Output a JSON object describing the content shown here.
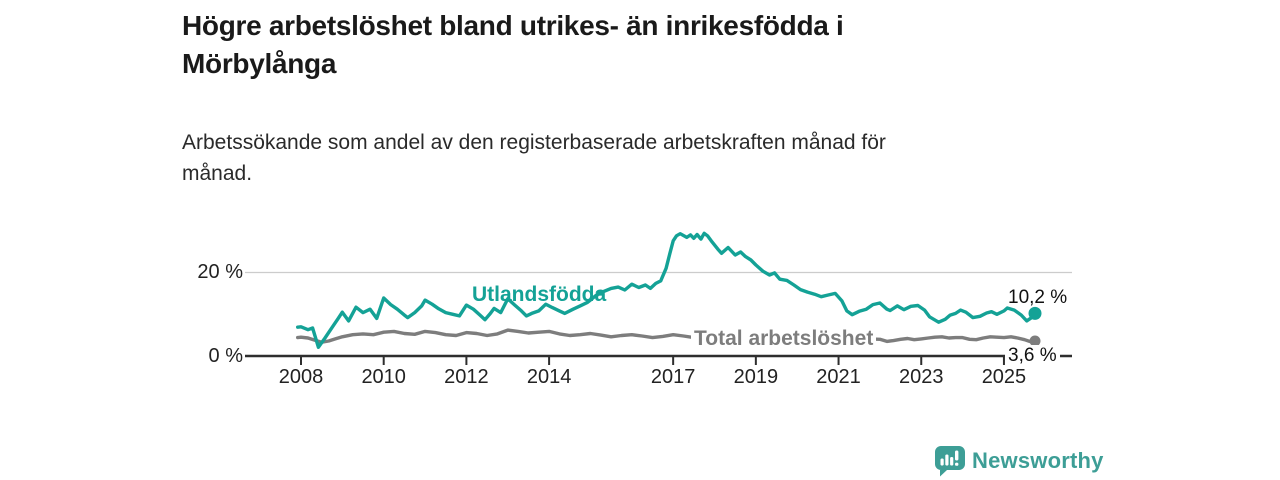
{
  "header": {
    "title_line1": "Högre arbetslöshet bland utrikes- än inrikesfödda i",
    "title_line2": "Mörbylånga",
    "subtitle_line1": "Arbetssökande som andel av den registerbaserade arbetskraften månad för",
    "subtitle_line2": "månad."
  },
  "chart_data": {
    "type": "line",
    "title": "Högre arbetslöshet bland utrikes- än inrikesfödda i Mörbylånga",
    "subtitle": "Arbetssökande som andel av den registerbaserade arbetskraften månad för månad.",
    "unit": "%",
    "grid": "horizontal-at-20-only",
    "legend_position": "inline-labels-on-lines",
    "x_axis": {
      "tick_years": [
        2008,
        2010,
        2012,
        2014,
        2017,
        2019,
        2021,
        2023,
        2025
      ],
      "range": [
        2007.9,
        2026.2
      ]
    },
    "y_axis": {
      "tick_values": [
        0,
        20
      ],
      "tick_labels": [
        "0 %",
        "20 %"
      ],
      "range": [
        0,
        31
      ],
      "gridline_at": 20
    },
    "series": [
      {
        "name": "Utlandsfödda",
        "color": "#14a296",
        "end_value": 10.2,
        "end_label": "10,2 %",
        "points": [
          [
            2007.92,
            6.9
          ],
          [
            2008.0,
            7.0
          ],
          [
            2008.17,
            6.3
          ],
          [
            2008.28,
            6.7
          ],
          [
            2008.42,
            2.1
          ],
          [
            2008.58,
            4.3
          ],
          [
            2008.75,
            6.8
          ],
          [
            2008.9,
            9.0
          ],
          [
            2009.0,
            10.5
          ],
          [
            2009.15,
            8.4
          ],
          [
            2009.33,
            11.7
          ],
          [
            2009.5,
            10.4
          ],
          [
            2009.67,
            11.2
          ],
          [
            2009.83,
            9.0
          ],
          [
            2010.0,
            13.9
          ],
          [
            2010.17,
            12.3
          ],
          [
            2010.33,
            11.2
          ],
          [
            2010.5,
            9.8
          ],
          [
            2010.58,
            9.2
          ],
          [
            2010.75,
            10.4
          ],
          [
            2010.92,
            12.0
          ],
          [
            2011.0,
            13.4
          ],
          [
            2011.17,
            12.4
          ],
          [
            2011.33,
            11.3
          ],
          [
            2011.5,
            10.4
          ],
          [
            2011.67,
            10.0
          ],
          [
            2011.83,
            9.6
          ],
          [
            2012.0,
            12.2
          ],
          [
            2012.17,
            11.2
          ],
          [
            2012.33,
            9.8
          ],
          [
            2012.45,
            8.7
          ],
          [
            2012.58,
            10.2
          ],
          [
            2012.67,
            11.4
          ],
          [
            2012.83,
            10.4
          ],
          [
            2013.0,
            13.7
          ],
          [
            2013.17,
            12.2
          ],
          [
            2013.33,
            10.8
          ],
          [
            2013.45,
            9.6
          ],
          [
            2013.58,
            10.2
          ],
          [
            2013.75,
            10.8
          ],
          [
            2013.92,
            12.4
          ],
          [
            2014.08,
            11.6
          ],
          [
            2014.25,
            10.8
          ],
          [
            2014.38,
            10.2
          ],
          [
            2014.58,
            11.2
          ],
          [
            2014.75,
            12.0
          ],
          [
            2014.92,
            12.8
          ],
          [
            2015.0,
            13.4
          ],
          [
            2015.17,
            14.8
          ],
          [
            2015.33,
            15.5
          ],
          [
            2015.5,
            16.2
          ],
          [
            2015.67,
            16.5
          ],
          [
            2015.83,
            15.8
          ],
          [
            2016.0,
            17.2
          ],
          [
            2016.17,
            16.4
          ],
          [
            2016.33,
            17.0
          ],
          [
            2016.45,
            16.2
          ],
          [
            2016.58,
            17.4
          ],
          [
            2016.7,
            18.0
          ],
          [
            2016.83,
            21.0
          ],
          [
            2016.92,
            24.5
          ],
          [
            2017.0,
            27.6
          ],
          [
            2017.08,
            28.8
          ],
          [
            2017.17,
            29.3
          ],
          [
            2017.33,
            28.4
          ],
          [
            2017.42,
            29.0
          ],
          [
            2017.5,
            28.2
          ],
          [
            2017.58,
            29.1
          ],
          [
            2017.67,
            28.0
          ],
          [
            2017.75,
            29.4
          ],
          [
            2017.83,
            28.8
          ],
          [
            2017.92,
            27.6
          ],
          [
            2018.08,
            25.6
          ],
          [
            2018.17,
            24.6
          ],
          [
            2018.33,
            26.0
          ],
          [
            2018.5,
            24.2
          ],
          [
            2018.63,
            24.9
          ],
          [
            2018.75,
            23.8
          ],
          [
            2018.88,
            23.0
          ],
          [
            2019.0,
            21.8
          ],
          [
            2019.17,
            20.3
          ],
          [
            2019.33,
            19.4
          ],
          [
            2019.45,
            19.9
          ],
          [
            2019.58,
            18.4
          ],
          [
            2019.75,
            18.1
          ],
          [
            2019.92,
            17.0
          ],
          [
            2020.08,
            15.9
          ],
          [
            2020.25,
            15.3
          ],
          [
            2020.42,
            14.8
          ],
          [
            2020.58,
            14.2
          ],
          [
            2020.75,
            14.6
          ],
          [
            2020.92,
            15.0
          ],
          [
            2021.08,
            13.2
          ],
          [
            2021.2,
            10.8
          ],
          [
            2021.33,
            9.9
          ],
          [
            2021.5,
            10.7
          ],
          [
            2021.67,
            11.2
          ],
          [
            2021.83,
            12.3
          ],
          [
            2022.0,
            12.7
          ],
          [
            2022.17,
            11.2
          ],
          [
            2022.25,
            10.9
          ],
          [
            2022.42,
            12.0
          ],
          [
            2022.58,
            11.1
          ],
          [
            2022.75,
            11.9
          ],
          [
            2022.92,
            12.1
          ],
          [
            2023.08,
            11.0
          ],
          [
            2023.2,
            9.4
          ],
          [
            2023.42,
            8.1
          ],
          [
            2023.58,
            8.8
          ],
          [
            2023.7,
            9.8
          ],
          [
            2023.83,
            10.2
          ],
          [
            2023.95,
            11.0
          ],
          [
            2024.08,
            10.5
          ],
          [
            2024.25,
            9.2
          ],
          [
            2024.42,
            9.5
          ],
          [
            2024.58,
            10.3
          ],
          [
            2024.7,
            10.6
          ],
          [
            2024.83,
            10.0
          ],
          [
            2025.0,
            10.8
          ],
          [
            2025.08,
            11.5
          ],
          [
            2025.25,
            11.0
          ],
          [
            2025.42,
            9.8
          ],
          [
            2025.55,
            8.4
          ],
          [
            2025.67,
            9.2
          ],
          [
            2025.75,
            10.2
          ]
        ]
      },
      {
        "name": "Total arbetslöshet",
        "color": "#7d7d7d",
        "end_value": 3.6,
        "end_label": "3,6 %",
        "points": [
          [
            2007.92,
            4.4
          ],
          [
            2008.0,
            4.5
          ],
          [
            2008.17,
            4.3
          ],
          [
            2008.33,
            3.8
          ],
          [
            2008.5,
            3.3
          ],
          [
            2008.67,
            3.6
          ],
          [
            2008.83,
            4.1
          ],
          [
            2009.0,
            4.6
          ],
          [
            2009.25,
            5.1
          ],
          [
            2009.5,
            5.3
          ],
          [
            2009.75,
            5.1
          ],
          [
            2010.0,
            5.7
          ],
          [
            2010.25,
            5.9
          ],
          [
            2010.5,
            5.4
          ],
          [
            2010.75,
            5.2
          ],
          [
            2011.0,
            5.9
          ],
          [
            2011.25,
            5.6
          ],
          [
            2011.5,
            5.1
          ],
          [
            2011.75,
            4.9
          ],
          [
            2012.0,
            5.6
          ],
          [
            2012.25,
            5.4
          ],
          [
            2012.5,
            4.9
          ],
          [
            2012.75,
            5.3
          ],
          [
            2013.0,
            6.2
          ],
          [
            2013.25,
            5.9
          ],
          [
            2013.5,
            5.5
          ],
          [
            2013.75,
            5.7
          ],
          [
            2014.0,
            5.9
          ],
          [
            2014.25,
            5.3
          ],
          [
            2014.5,
            4.9
          ],
          [
            2014.75,
            5.1
          ],
          [
            2015.0,
            5.4
          ],
          [
            2015.25,
            5.0
          ],
          [
            2015.5,
            4.6
          ],
          [
            2015.75,
            4.9
          ],
          [
            2016.0,
            5.1
          ],
          [
            2016.25,
            4.8
          ],
          [
            2016.5,
            4.4
          ],
          [
            2016.75,
            4.7
          ],
          [
            2017.0,
            5.1
          ],
          [
            2017.25,
            4.8
          ],
          [
            2017.5,
            4.4
          ],
          [
            2017.75,
            4.6
          ],
          [
            2018.0,
            4.7
          ],
          [
            2018.25,
            4.4
          ],
          [
            2018.5,
            4.1
          ],
          [
            2018.75,
            4.3
          ],
          [
            2019.0,
            4.4
          ],
          [
            2019.25,
            4.1
          ],
          [
            2019.5,
            3.8
          ],
          [
            2019.75,
            4.1
          ],
          [
            2020.0,
            4.4
          ],
          [
            2020.25,
            4.8
          ],
          [
            2020.5,
            5.0
          ],
          [
            2020.75,
            4.8
          ],
          [
            2021.0,
            4.6
          ],
          [
            2021.25,
            4.3
          ],
          [
            2021.5,
            4.0
          ],
          [
            2021.75,
            4.1
          ],
          [
            2022.0,
            4.0
          ],
          [
            2022.17,
            3.5
          ],
          [
            2022.33,
            3.7
          ],
          [
            2022.5,
            4.0
          ],
          [
            2022.67,
            4.2
          ],
          [
            2022.83,
            3.9
          ],
          [
            2023.0,
            4.1
          ],
          [
            2023.17,
            4.3
          ],
          [
            2023.33,
            4.5
          ],
          [
            2023.5,
            4.6
          ],
          [
            2023.67,
            4.3
          ],
          [
            2023.83,
            4.4
          ],
          [
            2024.0,
            4.4
          ],
          [
            2024.17,
            4.0
          ],
          [
            2024.33,
            3.9
          ],
          [
            2024.5,
            4.3
          ],
          [
            2024.67,
            4.6
          ],
          [
            2024.83,
            4.5
          ],
          [
            2025.0,
            4.4
          ],
          [
            2025.17,
            4.6
          ],
          [
            2025.33,
            4.3
          ],
          [
            2025.5,
            3.9
          ],
          [
            2025.62,
            3.5
          ],
          [
            2025.75,
            3.6
          ]
        ]
      }
    ]
  },
  "footer": {
    "brand": "Newsworthy",
    "brand_color": "#3d9e96",
    "logo_icon": "bar-chart-speech-bubble-icon"
  },
  "colors": {
    "background": "#ffffff",
    "title": "#1a1a1a",
    "subtitle": "#2a2a2a",
    "axis": "#2e2e2e",
    "gridline": "#cccccc",
    "tick_label": "#222222",
    "end_label": "#111111"
  }
}
